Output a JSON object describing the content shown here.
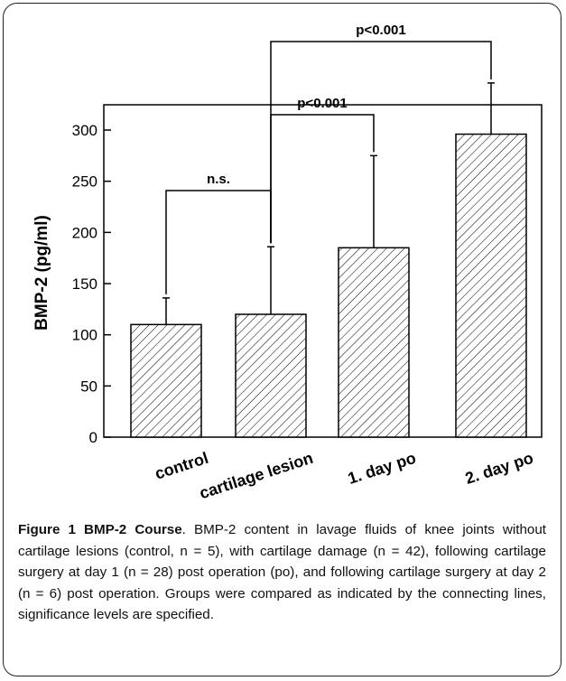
{
  "chart_data": {
    "type": "bar",
    "categories": [
      "control",
      "cartilage lesion",
      "1. day po",
      "2. day po"
    ],
    "values": [
      110,
      120,
      185,
      296
    ],
    "error_upper": [
      136,
      186,
      275,
      346
    ],
    "ylabel": "BMP-2 (pg/ml)",
    "xlabel": "",
    "ylim": [
      0,
      300
    ],
    "yticks": [
      0,
      50,
      100,
      150,
      200,
      250,
      300
    ],
    "bar_fill": "diagonal-hatch",
    "significance": [
      {
        "from": 0,
        "to": 1,
        "label": "n.s."
      },
      {
        "from": 1,
        "to": 2,
        "label": "p<0.001"
      },
      {
        "from": 1,
        "to": 3,
        "label": "p<0.001"
      }
    ]
  },
  "caption": {
    "label": "Figure 1 BMP-2 Course",
    "text": ". BMP-2 content in lavage fluids of knee joints without cartilage lesions (control, n = 5), with cartilage damage (n = 42), following cartilage surgery at day 1 (n = 28) post operation (po), and following cartilage surgery at day 2 (n = 6) post operation. Groups were compared as indicated by the connecting lines, significance levels are specified."
  },
  "colors": {
    "ink": "#000000",
    "frame": "#222222",
    "background": "#ffffff"
  }
}
